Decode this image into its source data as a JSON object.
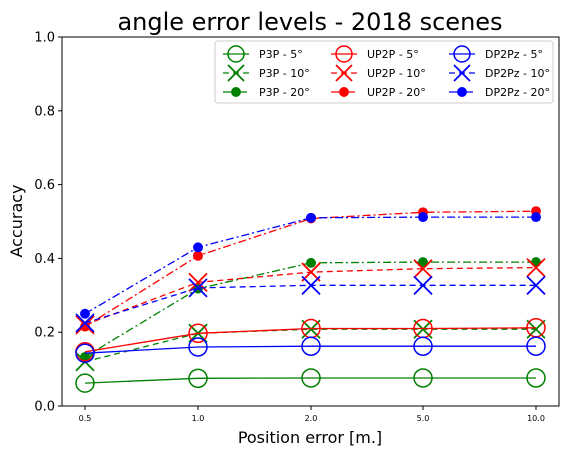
{
  "chart_data": {
    "type": "line",
    "title": "angle error levels - 2018 scenes",
    "xlabel": "Position error [m.]",
    "ylabel": "Accuracy",
    "categories": [
      "0.5",
      "1.0",
      "2.0",
      "5.0",
      "10.0"
    ],
    "yticks": [
      "0.0",
      "0.2",
      "0.4",
      "0.6",
      "0.8",
      "1.0"
    ],
    "ylim": [
      0,
      1
    ],
    "grid": false,
    "legend_position": "top-right",
    "legend_columns": 3,
    "series": [
      {
        "name": "P3P - 5°",
        "color": "#008000",
        "marker": "circle-open",
        "linestyle": "solid",
        "values": [
          0.062,
          0.075,
          0.076,
          0.076,
          0.076
        ]
      },
      {
        "name": "P3P - 10°",
        "color": "#008000",
        "marker": "x",
        "linestyle": "dashed",
        "values": [
          0.12,
          0.197,
          0.208,
          0.208,
          0.208
        ]
      },
      {
        "name": "P3P - 20°",
        "color": "#008000",
        "marker": "dot",
        "linestyle": "dashdot",
        "values": [
          0.133,
          0.318,
          0.388,
          0.39,
          0.39
        ]
      },
      {
        "name": "UP2P - 5°",
        "color": "#ff0000",
        "marker": "circle-open",
        "linestyle": "solid",
        "values": [
          0.147,
          0.197,
          0.21,
          0.21,
          0.212
        ]
      },
      {
        "name": "UP2P - 10°",
        "color": "#ff0000",
        "marker": "x",
        "linestyle": "dashed",
        "values": [
          0.22,
          0.335,
          0.363,
          0.372,
          0.375
        ]
      },
      {
        "name": "UP2P - 20°",
        "color": "#ff0000",
        "marker": "dot",
        "linestyle": "dashdot",
        "values": [
          0.215,
          0.407,
          0.508,
          0.525,
          0.528
        ]
      },
      {
        "name": "DP2Pz - 5°",
        "color": "#0000ff",
        "marker": "circle-open",
        "linestyle": "solid",
        "values": [
          0.143,
          0.16,
          0.162,
          0.162,
          0.162
        ]
      },
      {
        "name": "DP2Pz - 10°",
        "color": "#0000ff",
        "marker": "x",
        "linestyle": "dashed",
        "values": [
          0.225,
          0.32,
          0.327,
          0.327,
          0.327
        ]
      },
      {
        "name": "DP2Pz - 20°",
        "color": "#0000ff",
        "marker": "dot",
        "linestyle": "dashdot",
        "values": [
          0.25,
          0.43,
          0.51,
          0.512,
          0.512
        ]
      }
    ]
  }
}
